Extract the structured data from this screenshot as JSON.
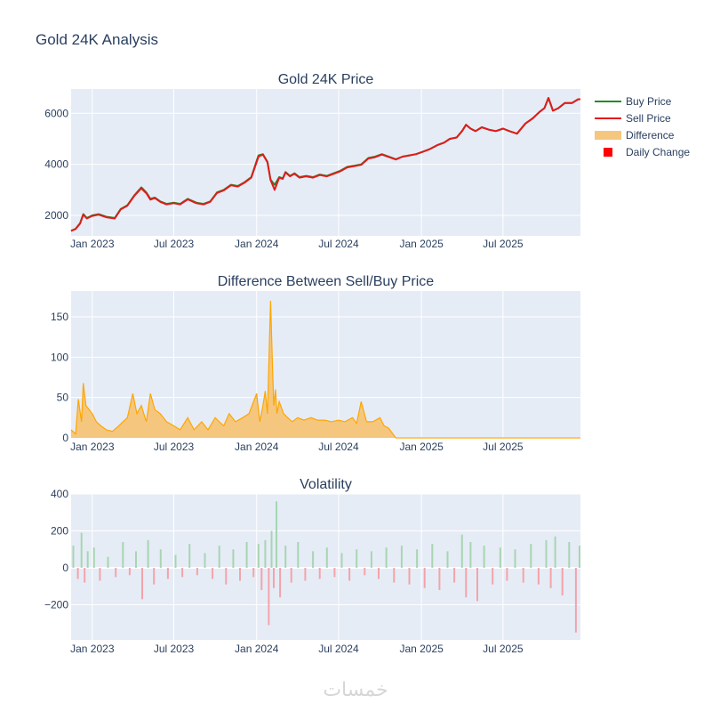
{
  "figure": {
    "title": "Gold 24K Analysis",
    "watermark": "خمسات"
  },
  "legend": {
    "items": [
      {
        "label": "Buy Price",
        "symbol": "line",
        "color": "#228b22"
      },
      {
        "label": "Sell Price",
        "symbol": "line",
        "color": "#e31a1c"
      },
      {
        "label": "Difference",
        "symbol": "area",
        "color": "#f5c77e"
      },
      {
        "label": "Daily Change",
        "symbol": "square",
        "color": "#ff0000"
      }
    ]
  },
  "colors": {
    "plot_bg": "#e5ecf6",
    "grid": "#ffffff",
    "buy": "#228b22",
    "sell": "#e31a1c",
    "diff_line": "#ffa500",
    "diff_fill": "#f5c77e",
    "vol_pos": "#a8d5b1",
    "vol_neg": "#f4a3aa",
    "text": "#2a3f5f"
  },
  "chart_data": [
    {
      "type": "line",
      "title": "Gold 24K Price",
      "x_ticks": [
        "Jan 2023",
        "Jul 2023",
        "Jan 2024",
        "Jul 2024",
        "Jan 2025",
        "Jul 2025"
      ],
      "x_tick_dates": [
        "2023-01-01",
        "2023-07-01",
        "2024-01-01",
        "2024-07-01",
        "2025-01-01",
        "2025-07-01"
      ],
      "xlim": [
        "2022-11-15",
        "2025-12-20"
      ],
      "ylim": [
        1200,
        6950
      ],
      "y_ticks": [
        2000,
        4000,
        6000
      ],
      "y_tick_labels": [
        "2000",
        "4000",
        "6000"
      ],
      "series": [
        {
          "name": "Buy Price",
          "color": "#228b22",
          "x": [
            "2022-11-15",
            "2022-11-25",
            "2022-12-05",
            "2022-12-12",
            "2022-12-20",
            "2023-01-01",
            "2023-01-15",
            "2023-02-01",
            "2023-02-20",
            "2023-03-05",
            "2023-03-20",
            "2023-04-05",
            "2023-04-20",
            "2023-05-01",
            "2023-05-10",
            "2023-05-20",
            "2023-06-01",
            "2023-06-15",
            "2023-07-01",
            "2023-07-15",
            "2023-08-01",
            "2023-08-20",
            "2023-09-05",
            "2023-09-20",
            "2023-10-05",
            "2023-10-20",
            "2023-11-05",
            "2023-11-20",
            "2023-12-05",
            "2023-12-20",
            "2024-01-05",
            "2024-01-15",
            "2024-01-25",
            "2024-02-01",
            "2024-02-10",
            "2024-02-20",
            "2024-02-28",
            "2024-03-05",
            "2024-03-15",
            "2024-03-25",
            "2024-04-05",
            "2024-04-20",
            "2024-05-05",
            "2024-05-20",
            "2024-06-05",
            "2024-06-20",
            "2024-07-05",
            "2024-07-20",
            "2024-08-05",
            "2024-08-20",
            "2024-09-05",
            "2024-09-20",
            "2024-10-05",
            "2024-10-20",
            "2024-11-05",
            "2024-11-20",
            "2024-12-05",
            "2024-12-20",
            "2025-01-05",
            "2025-01-20",
            "2025-02-05",
            "2025-02-20",
            "2025-03-05",
            "2025-03-20",
            "2025-04-01",
            "2025-04-10",
            "2025-04-20",
            "2025-05-01",
            "2025-05-15",
            "2025-06-01",
            "2025-06-15",
            "2025-07-01",
            "2025-07-15",
            "2025-08-01",
            "2025-08-20",
            "2025-09-05",
            "2025-09-20",
            "2025-10-01",
            "2025-10-10",
            "2025-10-20",
            "2025-11-01",
            "2025-11-15",
            "2025-12-01",
            "2025-12-15",
            "2025-12-20"
          ],
          "values": [
            1400,
            1480,
            1700,
            2050,
            1900,
            2000,
            2050,
            1950,
            1900,
            2250,
            2400,
            2800,
            3100,
            2900,
            2650,
            2700,
            2550,
            2450,
            2500,
            2450,
            2650,
            2500,
            2450,
            2550,
            2900,
            3000,
            3200,
            3150,
            3300,
            3500,
            4350,
            4400,
            4100,
            3400,
            3200,
            3500,
            3450,
            3700,
            3550,
            3650,
            3500,
            3550,
            3500,
            3600,
            3550,
            3650,
            3750,
            3900,
            3950,
            4000,
            4250,
            4300,
            4400,
            4300,
            4200,
            4300,
            4350,
            4400,
            4500,
            4600,
            4750,
            4850,
            5000,
            5050,
            5300,
            5550,
            5400,
            5300,
            5450,
            5350,
            5300,
            5400,
            5300,
            5200,
            5600,
            5800,
            6050,
            6200,
            6600,
            6100,
            6200,
            6400,
            6400,
            6550,
            6550
          ]
        },
        {
          "name": "Sell Price",
          "color": "#e31a1c",
          "x": [
            "2022-11-15",
            "2022-11-25",
            "2022-12-05",
            "2022-12-12",
            "2022-12-20",
            "2023-01-01",
            "2023-01-15",
            "2023-02-01",
            "2023-02-20",
            "2023-03-05",
            "2023-03-20",
            "2023-04-05",
            "2023-04-20",
            "2023-05-01",
            "2023-05-10",
            "2023-05-20",
            "2023-06-01",
            "2023-06-15",
            "2023-07-01",
            "2023-07-15",
            "2023-08-01",
            "2023-08-20",
            "2023-09-05",
            "2023-09-20",
            "2023-10-05",
            "2023-10-20",
            "2023-11-05",
            "2023-11-20",
            "2023-12-05",
            "2023-12-20",
            "2024-01-05",
            "2024-01-15",
            "2024-01-25",
            "2024-02-01",
            "2024-02-10",
            "2024-02-20",
            "2024-02-28",
            "2024-03-05",
            "2024-03-15",
            "2024-03-25",
            "2024-04-05",
            "2024-04-20",
            "2024-05-05",
            "2024-05-20",
            "2024-06-05",
            "2024-06-20",
            "2024-07-05",
            "2024-07-20",
            "2024-08-05",
            "2024-08-20",
            "2024-09-05",
            "2024-09-20",
            "2024-10-05",
            "2024-10-20",
            "2024-11-05",
            "2024-11-20",
            "2024-12-05",
            "2024-12-20",
            "2025-01-05",
            "2025-01-20",
            "2025-02-05",
            "2025-02-20",
            "2025-03-05",
            "2025-03-20",
            "2025-04-01",
            "2025-04-10",
            "2025-04-20",
            "2025-05-01",
            "2025-05-15",
            "2025-06-01",
            "2025-06-15",
            "2025-07-01",
            "2025-07-15",
            "2025-08-01",
            "2025-08-20",
            "2025-09-05",
            "2025-09-20",
            "2025-10-01",
            "2025-10-10",
            "2025-10-20",
            "2025-11-01",
            "2025-11-15",
            "2025-12-01",
            "2025-12-15",
            "2025-12-20"
          ],
          "values": [
            1390,
            1470,
            1680,
            2030,
            1880,
            1980,
            2030,
            1930,
            1880,
            2230,
            2380,
            2780,
            3060,
            2870,
            2620,
            2680,
            2530,
            2430,
            2480,
            2430,
            2630,
            2480,
            2430,
            2530,
            2880,
            2980,
            3180,
            3130,
            3280,
            3480,
            4300,
            4380,
            4080,
            3380,
            3000,
            3480,
            3430,
            3680,
            3530,
            3630,
            3480,
            3530,
            3480,
            3580,
            3530,
            3630,
            3730,
            3880,
            3930,
            3980,
            4230,
            4280,
            4380,
            4290,
            4190,
            4300,
            4350,
            4400,
            4500,
            4600,
            4750,
            4850,
            5000,
            5050,
            5300,
            5550,
            5400,
            5300,
            5450,
            5350,
            5300,
            5400,
            5300,
            5200,
            5600,
            5800,
            6050,
            6200,
            6600,
            6100,
            6200,
            6400,
            6400,
            6550,
            6550
          ]
        }
      ]
    },
    {
      "type": "area",
      "title": "Difference Between Sell/Buy Price",
      "x_ticks": [
        "Jan 2023",
        "Jul 2023",
        "Jan 2024",
        "Jul 2024",
        "Jan 2025",
        "Jul 2025"
      ],
      "x_tick_dates": [
        "2023-01-01",
        "2023-07-01",
        "2024-01-01",
        "2024-07-01",
        "2025-01-01",
        "2025-07-01"
      ],
      "xlim": [
        "2022-11-15",
        "2025-12-20"
      ],
      "ylim": [
        0,
        182
      ],
      "y_ticks": [
        0,
        50,
        100,
        150
      ],
      "y_tick_labels": [
        "0",
        "50",
        "100",
        "150"
      ],
      "series": [
        {
          "name": "Difference",
          "color": "#ffa500",
          "x": [
            "2022-11-15",
            "2022-11-25",
            "2022-12-01",
            "2022-12-08",
            "2022-12-12",
            "2022-12-18",
            "2022-12-25",
            "2023-01-01",
            "2023-01-10",
            "2023-01-20",
            "2023-02-01",
            "2023-02-15",
            "2023-03-01",
            "2023-03-10",
            "2023-03-20",
            "2023-04-01",
            "2023-04-10",
            "2023-04-20",
            "2023-05-01",
            "2023-05-10",
            "2023-05-20",
            "2023-06-01",
            "2023-06-15",
            "2023-07-01",
            "2023-07-15",
            "2023-08-01",
            "2023-08-15",
            "2023-09-01",
            "2023-09-15",
            "2023-10-01",
            "2023-10-10",
            "2023-10-20",
            "2023-11-01",
            "2023-11-15",
            "2023-12-01",
            "2023-12-15",
            "2024-01-01",
            "2024-01-08",
            "2024-01-15",
            "2024-01-20",
            "2024-01-25",
            "2024-02-01",
            "2024-02-05",
            "2024-02-08",
            "2024-02-12",
            "2024-02-15",
            "2024-02-20",
            "2024-03-01",
            "2024-03-10",
            "2024-03-20",
            "2024-04-01",
            "2024-04-15",
            "2024-05-01",
            "2024-05-15",
            "2024-06-01",
            "2024-06-15",
            "2024-07-01",
            "2024-07-15",
            "2024-08-01",
            "2024-08-10",
            "2024-08-20",
            "2024-09-01",
            "2024-09-15",
            "2024-10-01",
            "2024-10-10",
            "2024-10-20",
            "2024-11-05",
            "2025-01-01",
            "2025-07-01",
            "2025-12-20"
          ],
          "values": [
            10,
            5,
            48,
            20,
            68,
            40,
            35,
            30,
            20,
            15,
            10,
            8,
            15,
            20,
            25,
            55,
            30,
            40,
            20,
            55,
            35,
            30,
            20,
            15,
            10,
            25,
            10,
            20,
            10,
            25,
            20,
            15,
            30,
            20,
            25,
            30,
            55,
            20,
            40,
            58,
            30,
            170,
            90,
            40,
            60,
            30,
            45,
            30,
            25,
            20,
            25,
            22,
            25,
            22,
            22,
            20,
            22,
            20,
            25,
            18,
            45,
            20,
            20,
            25,
            15,
            12,
            0,
            0,
            0,
            0
          ]
        }
      ]
    },
    {
      "type": "bar",
      "title": "Volatility",
      "x_ticks": [
        "Jan 2023",
        "Jul 2023",
        "Jan 2024",
        "Jul 2024",
        "Jan 2025",
        "Jul 2025"
      ],
      "x_tick_dates": [
        "2023-01-01",
        "2023-07-01",
        "2024-01-01",
        "2024-07-01",
        "2025-01-01",
        "2025-07-01"
      ],
      "xlim": [
        "2022-11-15",
        "2025-12-20"
      ],
      "ylim": [
        -390,
        400
      ],
      "y_ticks": [
        -200,
        0,
        200,
        400
      ],
      "y_tick_labels": [
        "−200",
        "0",
        "200",
        "400"
      ],
      "series": [
        {
          "name": "Daily Change",
          "x": [
            "2022-11-20",
            "2022-11-30",
            "2022-12-08",
            "2022-12-15",
            "2022-12-22",
            "2023-01-05",
            "2023-01-18",
            "2023-02-05",
            "2023-02-22",
            "2023-03-10",
            "2023-03-25",
            "2023-04-08",
            "2023-04-22",
            "2023-05-05",
            "2023-05-18",
            "2023-06-02",
            "2023-06-18",
            "2023-07-05",
            "2023-07-20",
            "2023-08-05",
            "2023-08-22",
            "2023-09-08",
            "2023-09-25",
            "2023-10-10",
            "2023-10-25",
            "2023-11-10",
            "2023-11-25",
            "2023-12-10",
            "2023-12-25",
            "2024-01-05",
            "2024-01-12",
            "2024-01-20",
            "2024-01-28",
            "2024-02-03",
            "2024-02-08",
            "2024-02-14",
            "2024-02-22",
            "2024-03-05",
            "2024-03-18",
            "2024-04-02",
            "2024-04-18",
            "2024-05-05",
            "2024-05-20",
            "2024-06-05",
            "2024-06-22",
            "2024-07-08",
            "2024-07-25",
            "2024-08-10",
            "2024-08-28",
            "2024-09-12",
            "2024-09-28",
            "2024-10-15",
            "2024-11-01",
            "2024-11-18",
            "2024-12-05",
            "2024-12-22",
            "2025-01-08",
            "2025-01-25",
            "2025-02-10",
            "2025-02-28",
            "2025-03-15",
            "2025-04-01",
            "2025-04-10",
            "2025-04-20",
            "2025-05-05",
            "2025-05-20",
            "2025-06-08",
            "2025-06-25",
            "2025-07-10",
            "2025-07-28",
            "2025-08-15",
            "2025-09-01",
            "2025-09-18",
            "2025-10-05",
            "2025-10-15",
            "2025-10-25",
            "2025-11-10",
            "2025-11-25",
            "2025-12-10",
            "2025-12-18"
          ],
          "values": [
            120,
            -60,
            190,
            -80,
            90,
            110,
            -70,
            60,
            -50,
            140,
            -40,
            90,
            -170,
            150,
            -90,
            100,
            -60,
            70,
            -50,
            130,
            -40,
            80,
            -60,
            120,
            -90,
            100,
            -70,
            140,
            -50,
            130,
            -120,
            150,
            -310,
            200,
            -110,
            360,
            -160,
            120,
            -80,
            140,
            -70,
            90,
            -60,
            110,
            -50,
            80,
            -70,
            100,
            -40,
            90,
            -60,
            110,
            -80,
            120,
            -90,
            100,
            -110,
            130,
            -120,
            90,
            -80,
            180,
            -160,
            140,
            -180,
            120,
            -90,
            110,
            -70,
            100,
            -80,
            130,
            -90,
            150,
            -110,
            170,
            -150,
            140,
            -350,
            120
          ]
        }
      ]
    }
  ]
}
